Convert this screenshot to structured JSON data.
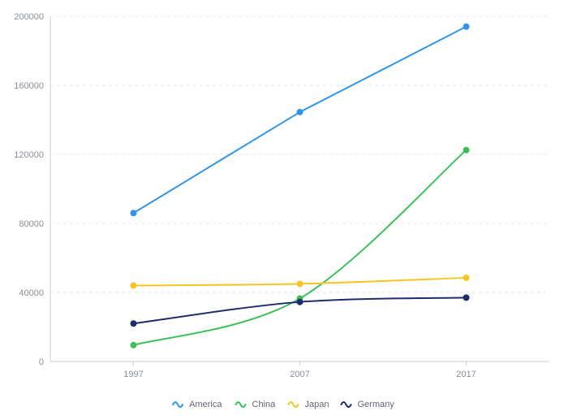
{
  "chart_data": {
    "type": "line",
    "categories": [
      "1997",
      "2007",
      "2017"
    ],
    "ylim": [
      0,
      200000
    ],
    "yticks": [
      "0",
      "40000",
      "80000",
      "120000",
      "160000",
      "200000"
    ],
    "grid": true,
    "legend_position": "bottom",
    "series": [
      {
        "name": "America",
        "color": "#2f95ea",
        "smooth": false,
        "values": [
          86000,
          144500,
          194000
        ]
      },
      {
        "name": "China",
        "color": "#3cbf5a",
        "smooth": true,
        "values": [
          9500,
          36500,
          122500
        ]
      },
      {
        "name": "Japan",
        "color": "#f5c623",
        "smooth": true,
        "values": [
          44000,
          45000,
          48500
        ]
      },
      {
        "name": "Germany",
        "color": "#1e2d6b",
        "smooth": true,
        "values": [
          22000,
          34500,
          37000
        ]
      }
    ]
  }
}
